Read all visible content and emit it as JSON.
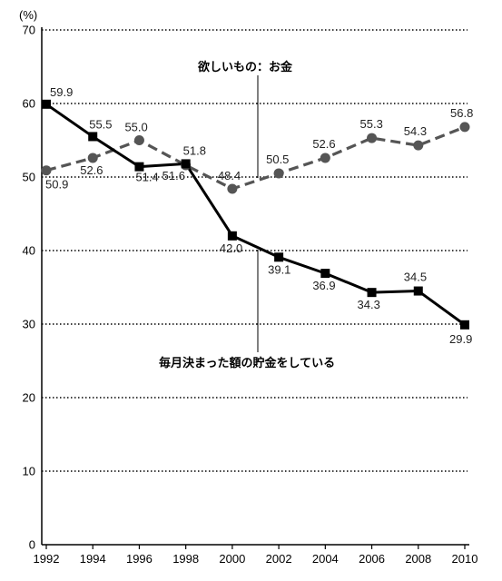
{
  "chart_data": {
    "type": "line",
    "ylabel": "(%)",
    "ylim": [
      0,
      70
    ],
    "yticks": [
      "0",
      "10",
      "20",
      "30",
      "40",
      "50",
      "60",
      "70"
    ],
    "categories": [
      "1992",
      "1994",
      "1996",
      "1998",
      "2000",
      "2002",
      "2004",
      "2006",
      "2008",
      "2010"
    ],
    "grid": "horizontal dotted",
    "series": [
      {
        "name": "毎月決まった額の貯金をしている",
        "style": "solid",
        "marker": "square",
        "color": "#000000",
        "values": [
          59.9,
          55.5,
          51.4,
          51.8,
          42.0,
          39.1,
          36.9,
          34.3,
          34.5,
          29.9
        ],
        "labels": [
          "59.9",
          "55.5",
          "51.4",
          "51.8",
          "42.0",
          "39.1",
          "36.9",
          "34.3",
          "34.5",
          "29.9"
        ]
      },
      {
        "name": "欲しいもの：お金",
        "style": "dashed",
        "marker": "circle",
        "color": "#555555",
        "values": [
          50.9,
          52.6,
          55.0,
          51.6,
          48.4,
          50.5,
          52.6,
          55.3,
          54.3,
          56.8
        ],
        "labels": [
          "50.9",
          "52.6",
          "55.0",
          "51.6",
          "48.4",
          "50.5",
          "52.6",
          "55.3",
          "54.3",
          "56.8"
        ]
      }
    ]
  }
}
